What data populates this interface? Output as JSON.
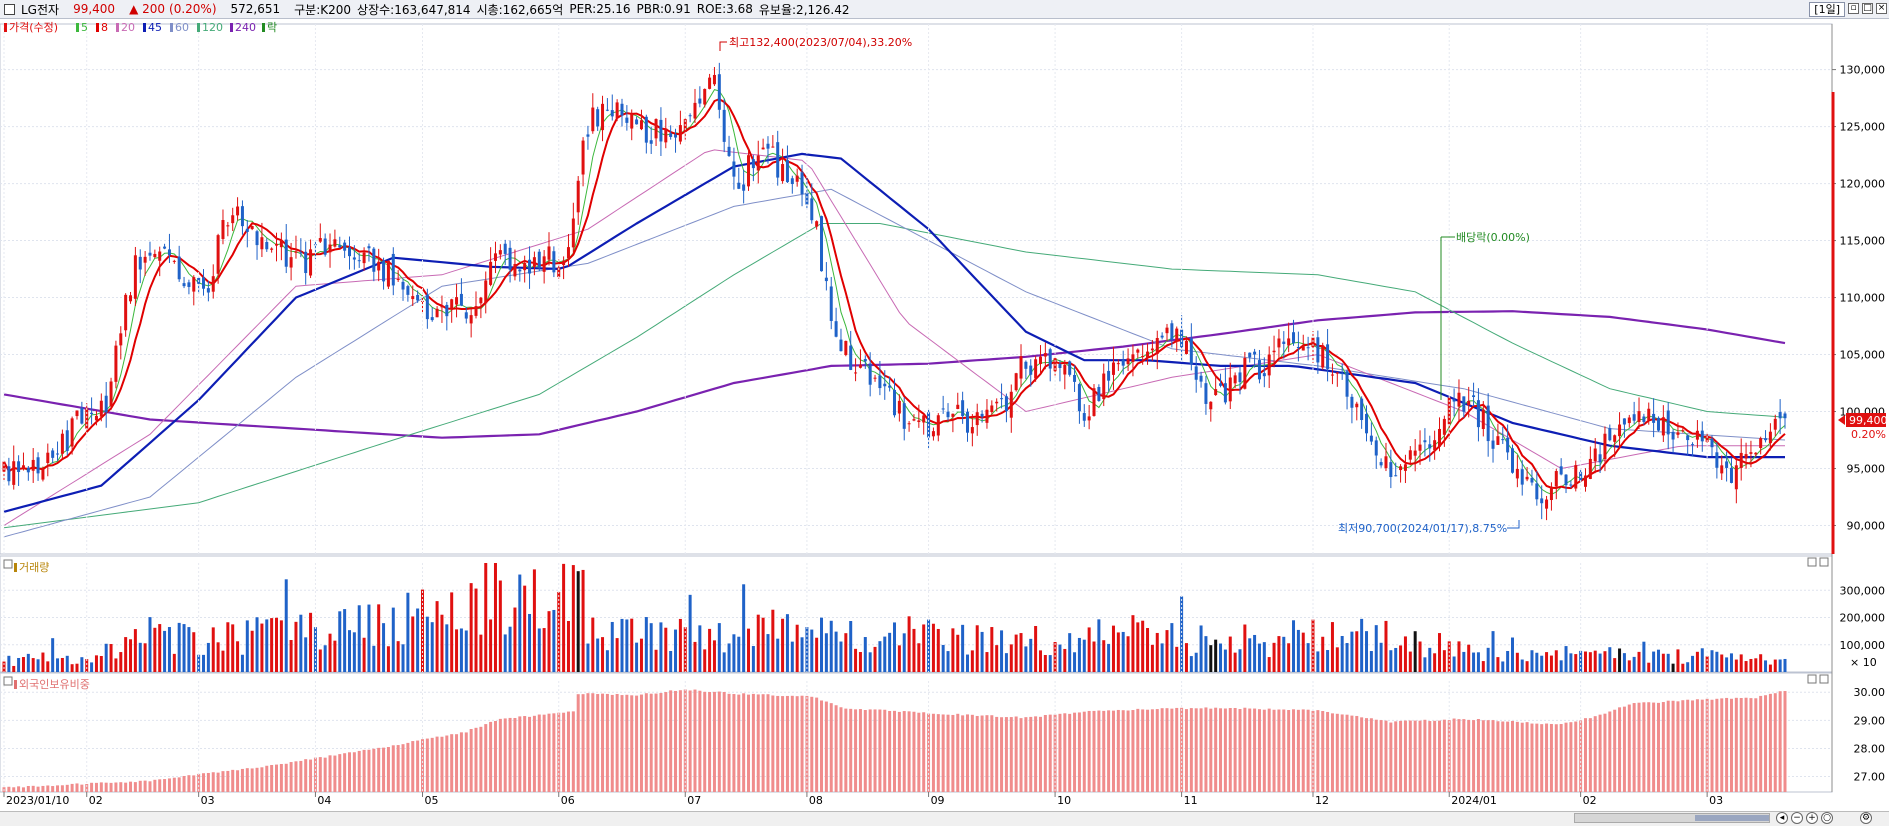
{
  "header": {
    "stock_name": "LG전자",
    "price": "99,400",
    "change": "▲ 200",
    "change_pct": "(0.20%)",
    "volume": "572,651",
    "category": "구분:K200",
    "shares": "상장수:163,647,814",
    "market_cap": "시총:162,665억",
    "per": "PER:25.16",
    "pbr": "PBR:0.91",
    "roe": "ROE:3.68",
    "float": "유보율:2,126.42",
    "period": "[1일]"
  },
  "legend": {
    "price": "가격(수정)",
    "ma5": "5",
    "ma8": "8",
    "ma20": "20",
    "ma45": "45",
    "ma60": "60",
    "ma120": "120",
    "ma240": "240",
    "ex": "락"
  },
  "colors": {
    "up": "#e01010",
    "down": "#1f62c8",
    "ma5": "#3cb83c",
    "ma8": "#e00000",
    "ma20": "#c86ab4",
    "ma45": "#0d1eb4",
    "ma60": "#7f8fc8",
    "ma120": "#45aa78",
    "ma240": "#7a22b0",
    "foreign": "#f08c8c"
  },
  "chart_data": [
    {
      "type": "candlestick",
      "title": "",
      "start_date": "2023/01/10",
      "end_date": "2024/03",
      "x_labels": [
        "2023/01/10",
        "02",
        "03",
        "04",
        "05",
        "06",
        "07",
        "08",
        "09",
        "10",
        "11",
        "12",
        "2024/01",
        "02",
        "03"
      ],
      "y_ticks": [
        "130,000",
        "125,000",
        "120,000",
        "115,000",
        "110,000",
        "105,000",
        "100,000",
        "95,000",
        "90,000"
      ],
      "ylim": [
        87500,
        134000
      ],
      "close_path": [
        [
          0,
          94500
        ],
        [
          4,
          95200
        ],
        [
          10,
          96000
        ],
        [
          15,
          99000
        ],
        [
          21,
          101000
        ],
        [
          27,
          113000
        ],
        [
          32,
          114000
        ],
        [
          36,
          112500
        ],
        [
          42,
          111000
        ],
        [
          46,
          117500
        ],
        [
          51,
          116000
        ],
        [
          55,
          114500
        ],
        [
          61,
          113000
        ],
        [
          66,
          115000
        ],
        [
          71,
          114200
        ],
        [
          76,
          113500
        ],
        [
          81,
          111500
        ],
        [
          86,
          109500
        ],
        [
          90,
          108200
        ],
        [
          96,
          109500
        ],
        [
          101,
          113500
        ],
        [
          106,
          111500
        ],
        [
          111,
          113000
        ],
        [
          116,
          114000
        ],
        [
          119,
          124500
        ],
        [
          123,
          126500
        ],
        [
          128,
          126000
        ],
        [
          133,
          124500
        ],
        [
          138,
          124000
        ],
        [
          143,
          126500
        ],
        [
          146,
          129000
        ],
        [
          148,
          124500
        ],
        [
          151,
          119000
        ],
        [
          154,
          122500
        ],
        [
          158,
          122000
        ],
        [
          162,
          121000
        ],
        [
          167,
          115500
        ],
        [
          171,
          107000
        ],
        [
          174,
          104000
        ],
        [
          178,
          103500
        ],
        [
          182,
          101500
        ],
        [
          186,
          98500
        ],
        [
          190,
          99000
        ],
        [
          196,
          99500
        ],
        [
          201,
          99200
        ],
        [
          206,
          100500
        ],
        [
          209,
          104500
        ],
        [
          213,
          104500
        ],
        [
          218,
          103500
        ],
        [
          222,
          99800
        ],
        [
          226,
          103000
        ],
        [
          230,
          104500
        ],
        [
          235,
          106000
        ],
        [
          240,
          107000
        ],
        [
          244,
          104500
        ],
        [
          248,
          101000
        ],
        [
          252,
          102000
        ],
        [
          256,
          104000
        ],
        [
          260,
          104000
        ],
        [
          264,
          107000
        ],
        [
          269,
          105500
        ],
        [
          273,
          104000
        ],
        [
          278,
          101000
        ],
        [
          282,
          97000
        ],
        [
          285,
          95500
        ],
        [
          289,
          96000
        ],
        [
          293,
          98000
        ],
        [
          297,
          100500
        ],
        [
          301,
          101000
        ],
        [
          305,
          98500
        ],
        [
          309,
          96500
        ],
        [
          313,
          93500
        ],
        [
          317,
          92500
        ],
        [
          321,
          94500
        ],
        [
          326,
          95000
        ],
        [
          331,
          98000
        ],
        [
          336,
          99800
        ],
        [
          341,
          99000
        ],
        [
          346,
          98500
        ],
        [
          350,
          97500
        ],
        [
          354,
          94500
        ],
        [
          358,
          95500
        ],
        [
          362,
          98000
        ],
        [
          366,
          99400
        ]
      ],
      "highlight": {
        "high": "최고132,400(2023/07/04),33.20%",
        "low": "최저90,700(2024/01/17),8.75%",
        "dividend": "배당락(0.00%)"
      },
      "ma_lines": {
        "ma20": [
          [
            0,
            90000
          ],
          [
            30,
            98000
          ],
          [
            60,
            111000
          ],
          [
            90,
            112000
          ],
          [
            120,
            116000
          ],
          [
            145,
            123000
          ],
          [
            165,
            122000
          ],
          [
            185,
            108000
          ],
          [
            210,
            100000
          ],
          [
            240,
            103000
          ],
          [
            270,
            105000
          ],
          [
            300,
            100000
          ],
          [
            320,
            95000
          ],
          [
            345,
            97000
          ],
          [
            366,
            97000
          ]
        ],
        "ma45": [
          [
            0,
            91200
          ],
          [
            20,
            93500
          ],
          [
            40,
            101000
          ],
          [
            60,
            110000
          ],
          [
            80,
            113500
          ],
          [
            100,
            112700
          ],
          [
            115,
            112500
          ],
          [
            130,
            116500
          ],
          [
            150,
            121500
          ],
          [
            164,
            122600
          ],
          [
            172,
            122200
          ],
          [
            190,
            116000
          ],
          [
            210,
            107000
          ],
          [
            222,
            104500
          ],
          [
            235,
            104500
          ],
          [
            250,
            104000
          ],
          [
            265,
            104000
          ],
          [
            290,
            102500
          ],
          [
            310,
            99000
          ],
          [
            330,
            97000
          ],
          [
            350,
            96000
          ],
          [
            366,
            96000
          ]
        ],
        "ma60": [
          [
            0,
            89000
          ],
          [
            30,
            92500
          ],
          [
            60,
            103000
          ],
          [
            90,
            111000
          ],
          [
            120,
            113000
          ],
          [
            150,
            118000
          ],
          [
            170,
            119500
          ],
          [
            190,
            115000
          ],
          [
            210,
            110500
          ],
          [
            240,
            105500
          ],
          [
            270,
            104000
          ],
          [
            300,
            102000
          ],
          [
            330,
            98500
          ],
          [
            366,
            97500
          ]
        ],
        "ma120": [
          [
            0,
            89800
          ],
          [
            40,
            92000
          ],
          [
            80,
            97500
          ],
          [
            110,
            101500
          ],
          [
            130,
            106500
          ],
          [
            150,
            112000
          ],
          [
            168,
            116500
          ],
          [
            180,
            116500
          ],
          [
            210,
            114000
          ],
          [
            240,
            112500
          ],
          [
            270,
            112000
          ],
          [
            290,
            110500
          ],
          [
            310,
            106000
          ],
          [
            330,
            102000
          ],
          [
            350,
            100000
          ],
          [
            366,
            99500
          ]
        ],
        "ma240": [
          [
            0,
            101500
          ],
          [
            30,
            99300
          ],
          [
            60,
            98500
          ],
          [
            90,
            97700
          ],
          [
            110,
            98000
          ],
          [
            130,
            100000
          ],
          [
            150,
            102500
          ],
          [
            170,
            104000
          ],
          [
            190,
            104200
          ],
          [
            210,
            104800
          ],
          [
            230,
            105700
          ],
          [
            250,
            106800
          ],
          [
            270,
            108000
          ],
          [
            290,
            108700
          ],
          [
            310,
            108800
          ],
          [
            330,
            108300
          ],
          [
            350,
            107200
          ],
          [
            366,
            106000
          ]
        ]
      },
      "last_price_label": "99,400",
      "last_pct_label": "0.20%"
    },
    {
      "type": "bar",
      "title": "거래량",
      "y_ticks": [
        "300,000",
        "200,000",
        "100,000"
      ],
      "unit": "× 10",
      "ylim": [
        0,
        400000
      ],
      "peaks": [
        [
          0,
          55000
        ],
        [
          20,
          90000
        ],
        [
          28,
          185000
        ],
        [
          46,
          170000
        ],
        [
          118,
          370000
        ],
        [
          120,
          190000
        ],
        [
          167,
          200000
        ],
        [
          209,
          170000
        ],
        [
          226,
          180000
        ],
        [
          260,
          155000
        ],
        [
          275,
          230000
        ],
        [
          300,
          105000
        ],
        [
          330,
          85000
        ],
        [
          352,
          80000
        ],
        [
          366,
          60000
        ]
      ]
    },
    {
      "type": "bar",
      "title": "외국인보유비중",
      "y_ticks": [
        "30.00",
        "29.00",
        "28.00",
        "27.00"
      ],
      "ylim": [
        26.45,
        30.4
      ],
      "path": [
        [
          0,
          26.6
        ],
        [
          30,
          26.85
        ],
        [
          55,
          27.4
        ],
        [
          75,
          27.95
        ],
        [
          95,
          28.6
        ],
        [
          102,
          29.05
        ],
        [
          117,
          29.3
        ],
        [
          118,
          29.95
        ],
        [
          130,
          29.9
        ],
        [
          140,
          30.1
        ],
        [
          150,
          29.95
        ],
        [
          166,
          29.85
        ],
        [
          172,
          29.45
        ],
        [
          190,
          29.25
        ],
        [
          210,
          29.1
        ],
        [
          225,
          29.35
        ],
        [
          250,
          29.45
        ],
        [
          270,
          29.35
        ],
        [
          285,
          28.95
        ],
        [
          300,
          29.05
        ],
        [
          320,
          28.85
        ],
        [
          326,
          29.1
        ],
        [
          335,
          29.6
        ],
        [
          350,
          29.75
        ],
        [
          360,
          29.8
        ],
        [
          366,
          30.05
        ]
      ]
    }
  ]
}
